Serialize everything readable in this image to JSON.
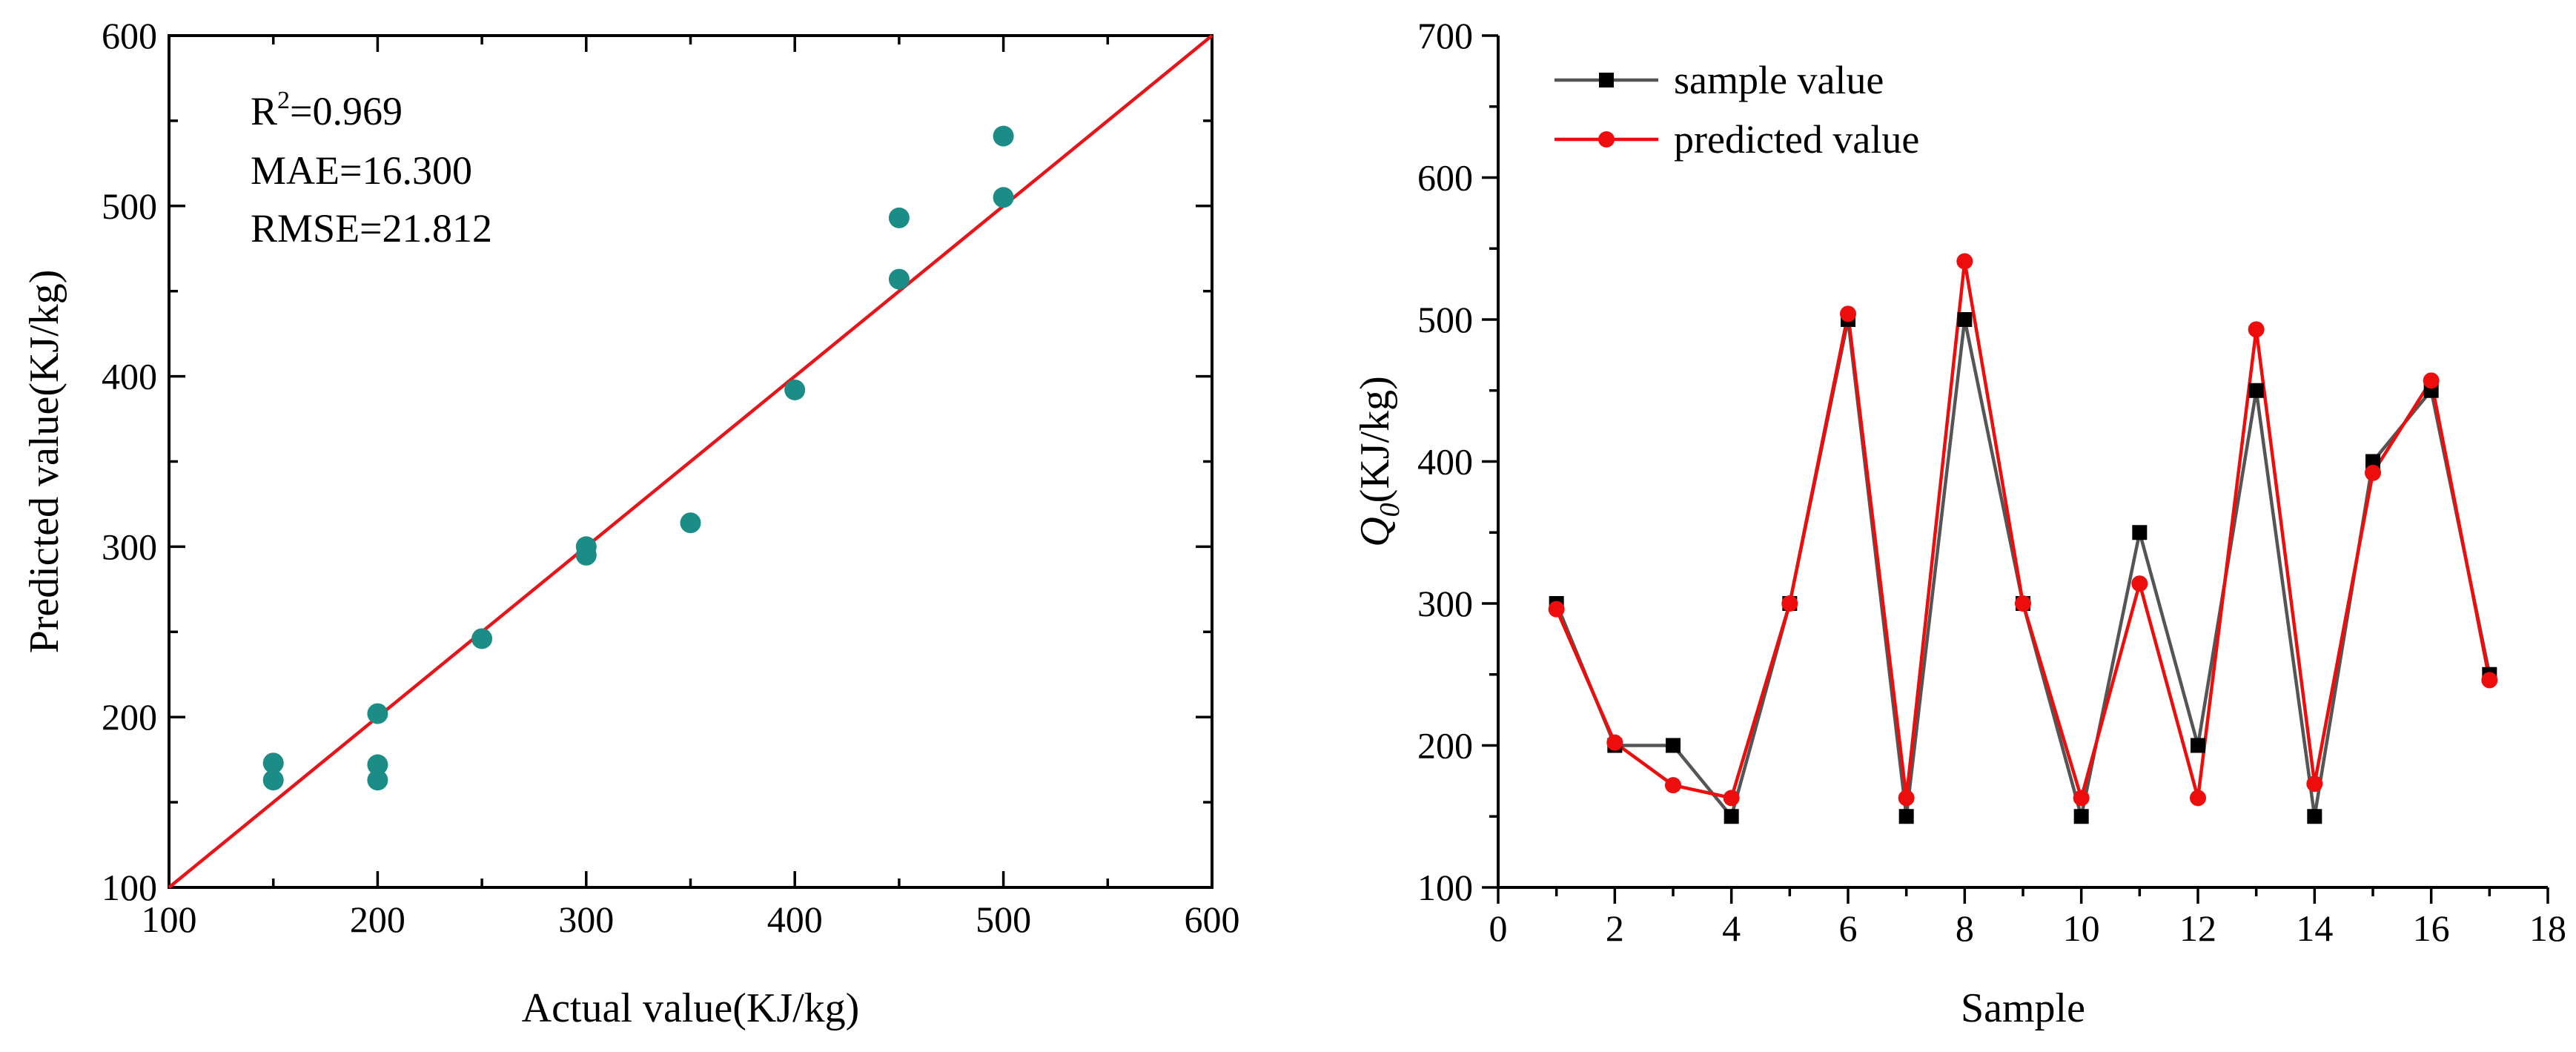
{
  "chart_data": [
    {
      "type": "scatter",
      "xlabel": "Actual value(KJ/kg)",
      "ylabel": "Predicted value(KJ/kg)",
      "xlim": [
        100,
        600
      ],
      "ylim": [
        100,
        600
      ],
      "xticks": [
        100,
        200,
        300,
        400,
        500,
        600
      ],
      "yticks": [
        100,
        200,
        300,
        400,
        500,
        600
      ],
      "stats": {
        "r2_label": "R",
        "r2_sup": "2",
        "r2_value": "=0.969",
        "mae": "MAE=16.300",
        "rmse": "RMSE=21.812"
      },
      "reference_line": {
        "from": [
          100,
          100
        ],
        "to": [
          600,
          600
        ],
        "color": "#e8141a"
      },
      "point_color": "#1b8c86",
      "points": [
        [
          150,
          163
        ],
        [
          150,
          173
        ],
        [
          200,
          163
        ],
        [
          200,
          172
        ],
        [
          200,
          202
        ],
        [
          250,
          246
        ],
        [
          300,
          295
        ],
        [
          300,
          300
        ],
        [
          350,
          314
        ],
        [
          400,
          392
        ],
        [
          450,
          457
        ],
        [
          450,
          493
        ],
        [
          500,
          505
        ],
        [
          500,
          541
        ]
      ]
    },
    {
      "type": "line",
      "xlabel": "Sample",
      "ylabel_main": "Q",
      "ylabel_sub": "0",
      "ylabel_rest": "(KJ/kg)",
      "xlim": [
        0,
        18
      ],
      "ylim": [
        100,
        700
      ],
      "xticks": [
        0,
        2,
        4,
        6,
        8,
        10,
        12,
        14,
        16,
        18
      ],
      "yticks": [
        100,
        200,
        300,
        400,
        500,
        600,
        700
      ],
      "x": [
        1,
        2,
        3,
        4,
        5,
        6,
        7,
        8,
        9,
        10,
        11,
        12,
        13,
        14,
        15,
        16,
        17
      ],
      "series": [
        {
          "name": "sample value",
          "color": "#555555",
          "marker": "square",
          "values": [
            300,
            200,
            200,
            150,
            300,
            500,
            150,
            500,
            300,
            150,
            350,
            200,
            450,
            150,
            400,
            450,
            250
          ]
        },
        {
          "name": "predicted value",
          "color": "#ee0d0d",
          "marker": "circle",
          "values": [
            296,
            202,
            172,
            163,
            300,
            504,
            163,
            541,
            300,
            163,
            314,
            163,
            493,
            173,
            392,
            457,
            246
          ]
        }
      ],
      "legend": "top-left"
    }
  ]
}
